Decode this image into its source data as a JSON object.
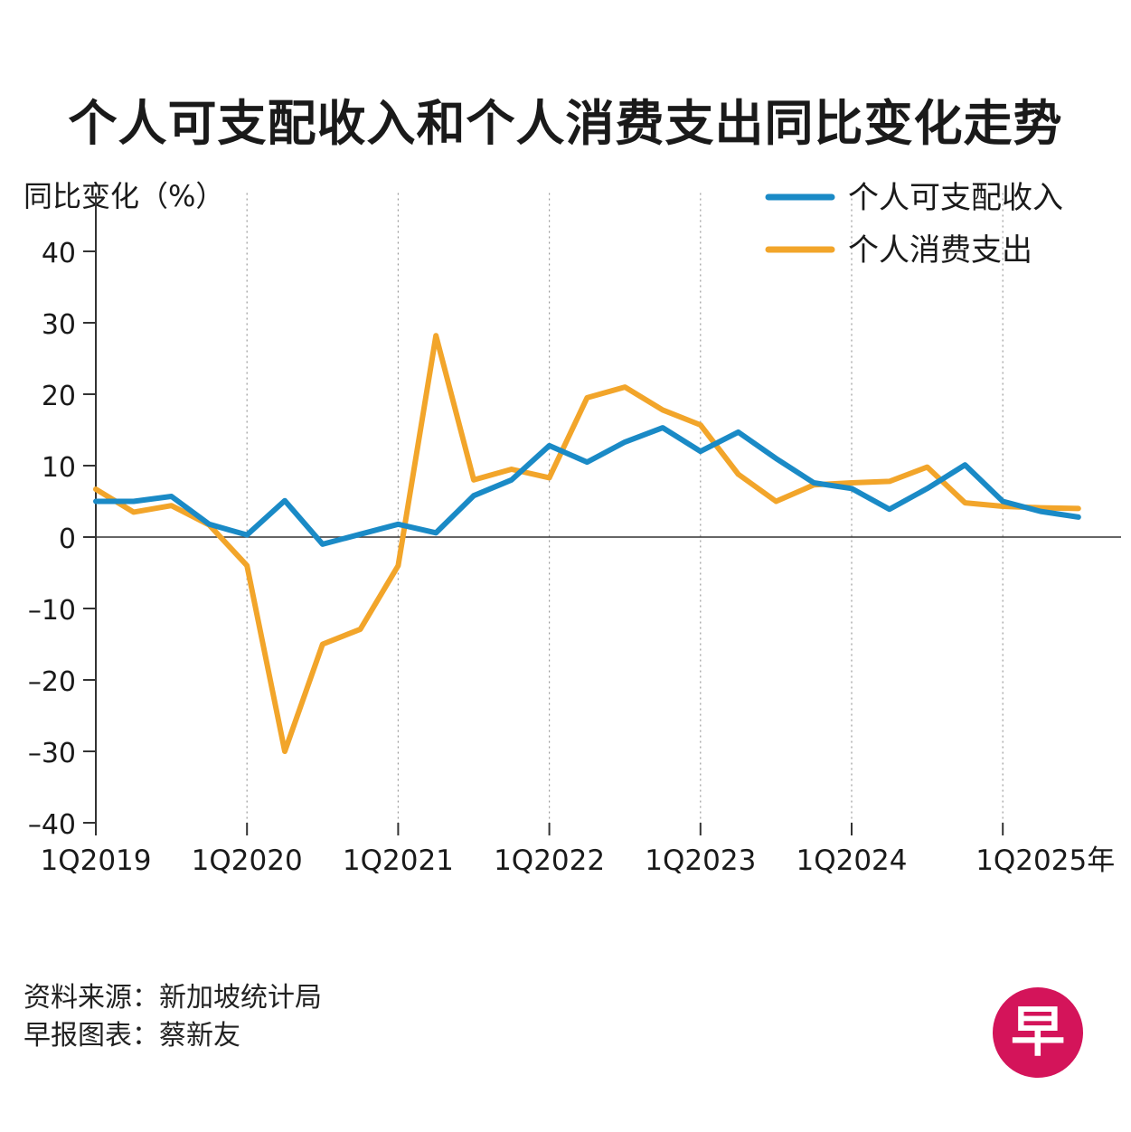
{
  "title": "个人可支配收入和个人消费支出同比变化走势",
  "footer": {
    "source": "资料来源：新加坡统计局",
    "credit": "早报图表：蔡新友"
  },
  "logo": {
    "text": "早",
    "color": "#d4145a"
  },
  "chart_data": {
    "type": "line",
    "ylabel": "同比变化（%）",
    "xlabel": "",
    "ylim": [
      -40,
      45
    ],
    "yticks": [
      40,
      30,
      20,
      10,
      0,
      -10,
      -20,
      -30,
      -40
    ],
    "ytick_labels": [
      "40",
      "30",
      "20",
      "10",
      "0",
      "–10",
      "–20",
      "–30",
      "–40"
    ],
    "xtick_labels": [
      "1Q2019",
      "1Q2020",
      "1Q2021",
      "1Q2022",
      "1Q2023",
      "1Q2024",
      "1Q2025年"
    ],
    "xtick_index": [
      0,
      4,
      8,
      12,
      16,
      20,
      24
    ],
    "x": [
      "1Q2019",
      "2Q2019",
      "3Q2019",
      "4Q2019",
      "1Q2020",
      "2Q2020",
      "3Q2020",
      "4Q2020",
      "1Q2021",
      "2Q2021",
      "3Q2021",
      "4Q2021",
      "1Q2022",
      "2Q2022",
      "3Q2022",
      "4Q2022",
      "1Q2023",
      "2Q2023",
      "3Q2023",
      "4Q2023",
      "1Q2024",
      "2Q2024",
      "3Q2024",
      "4Q2024",
      "1Q2025",
      "2Q2025",
      "3Q2025"
    ],
    "legend_position": "top-right",
    "grid": "vertical dashed at year starts",
    "series": [
      {
        "name": "个人可支配收入",
        "color": "#1a8ac6",
        "values": [
          5.0,
          5.0,
          5.7,
          1.8,
          0.3,
          5.1,
          -1.0,
          0.4,
          1.8,
          0.6,
          5.8,
          8.0,
          12.8,
          10.5,
          13.3,
          15.3,
          12.0,
          14.7,
          11.0,
          7.6,
          6.8,
          3.9,
          6.8,
          10.1,
          5.0,
          3.6,
          2.8
        ]
      },
      {
        "name": "个人消费支出",
        "color": "#f2a52a",
        "values": [
          6.7,
          3.5,
          4.4,
          1.7,
          -4.0,
          -30.0,
          -15.0,
          -12.9,
          -4.0,
          28.2,
          8.0,
          9.5,
          8.3,
          19.5,
          21.0,
          17.8,
          15.7,
          8.8,
          5.0,
          7.3,
          7.6,
          7.8,
          9.8,
          4.8,
          4.3,
          4.1,
          4.0
        ]
      }
    ]
  }
}
